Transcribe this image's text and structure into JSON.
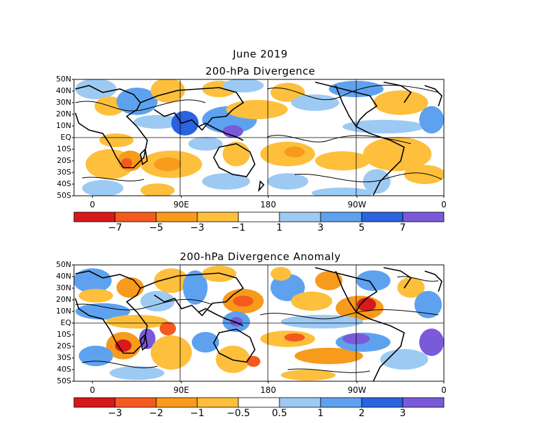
{
  "title": "June 2019",
  "panels": [
    {
      "title": "200-hPa Divergence",
      "lat_labels": [
        "50N",
        "40N",
        "30N",
        "20N",
        "10N",
        "EQ",
        "10S",
        "20S",
        "30S",
        "40S",
        "50S"
      ],
      "lon_labels": [
        "0",
        "90E",
        "180",
        "90W",
        "0"
      ],
      "colorbar": {
        "labels": [
          "-7",
          "-5",
          "-3",
          "-1",
          "1",
          "3",
          "5",
          "7"
        ],
        "colors": [
          "#d7191c",
          "#f45a1e",
          "#f89a1c",
          "#fdbf3c",
          "#ffffff",
          "#9ccaf3",
          "#5ea2ef",
          "#2a62e0",
          "#7a5ad8"
        ]
      }
    },
    {
      "title": "200-hPa Divergence Anomaly",
      "lat_labels": [
        "50N",
        "40N",
        "30N",
        "20N",
        "10N",
        "EQ",
        "10S",
        "20S",
        "30S",
        "40S",
        "50S"
      ],
      "lon_labels": [
        "0",
        "90E",
        "180",
        "90W",
        "0"
      ],
      "colorbar": {
        "labels": [
          "-3",
          "-2",
          "-1",
          "-0.5",
          "0.5",
          "1",
          "2",
          "3"
        ],
        "colors": [
          "#d7191c",
          "#f45a1e",
          "#f89a1c",
          "#fdbf3c",
          "#ffffff",
          "#9ccaf3",
          "#5ea2ef",
          "#2a62e0",
          "#7a5ad8"
        ]
      }
    }
  ]
}
